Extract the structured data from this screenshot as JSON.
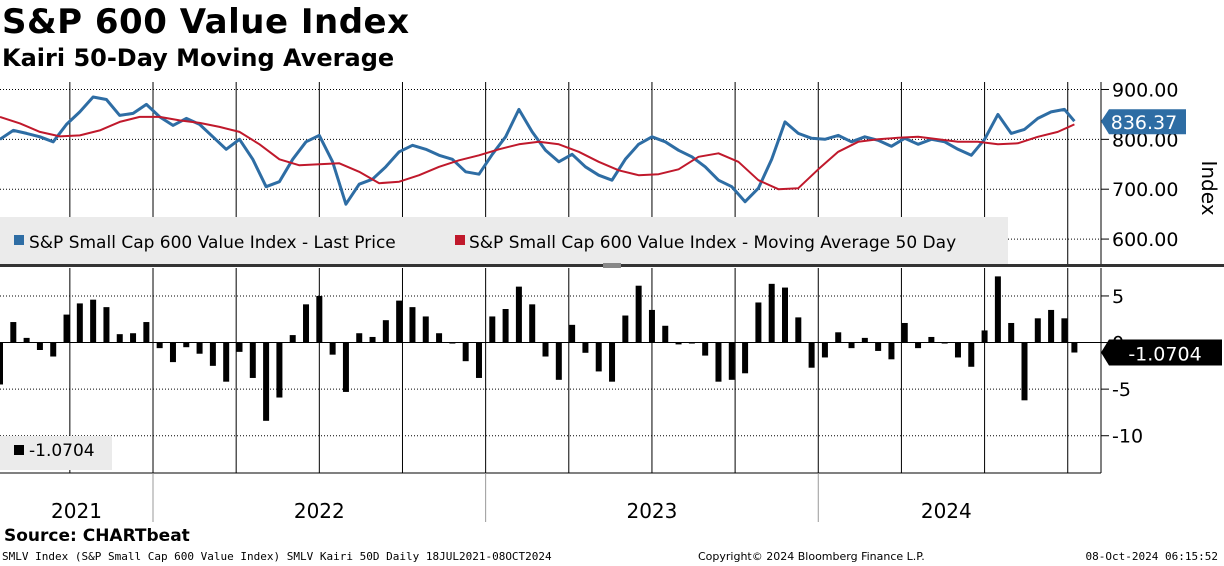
{
  "header": {
    "title": "S&P 600 Value Index",
    "subtitle": "Kairi 50-Day Moving Average"
  },
  "footer": {
    "source": "Source: CHARTbeat",
    "left": "SMLV Index (S&P Small Cap 600 Value Index) SMLV Kairi 50D  Daily 18JUL2021-08OCT2024",
    "copyright": "Copyright© 2024 Bloomberg Finance L.P.",
    "timestamp": "08-Oct-2024 06:15:52"
  },
  "colors": {
    "price": "#2e6da4",
    "ma": "#c0192c",
    "kairi": "#000000",
    "panel_bg": "#ebebeb"
  },
  "chart_data": [
    {
      "type": "line",
      "panel": "top",
      "ylabel": "Index",
      "ylim": [
        550,
        915
      ],
      "yticks": [
        900,
        800,
        700,
        600
      ],
      "ytick_labels": [
        "900.00",
        "800.00",
        "700.00",
        "600.00"
      ],
      "xlim": [
        2021.54,
        2024.85
      ],
      "grid": true,
      "legend_placement": "bottom-left",
      "last_value_label": "836.37",
      "series": [
        {
          "name": "S&P Small Cap 600 Value Index - Last Price",
          "color": "#2e6da4",
          "x": [
            2021.54,
            2021.58,
            2021.62,
            2021.66,
            2021.7,
            2021.74,
            2021.78,
            2021.82,
            2021.86,
            2021.9,
            2021.94,
            2021.98,
            2022.02,
            2022.06,
            2022.1,
            2022.14,
            2022.18,
            2022.22,
            2022.26,
            2022.3,
            2022.34,
            2022.38,
            2022.42,
            2022.46,
            2022.5,
            2022.54,
            2022.58,
            2022.62,
            2022.66,
            2022.7,
            2022.74,
            2022.78,
            2022.82,
            2022.86,
            2022.9,
            2022.94,
            2022.98,
            2023.02,
            2023.06,
            2023.1,
            2023.14,
            2023.18,
            2023.22,
            2023.26,
            2023.3,
            2023.34,
            2023.38,
            2023.42,
            2023.46,
            2023.5,
            2023.54,
            2023.58,
            2023.62,
            2023.66,
            2023.7,
            2023.74,
            2023.78,
            2023.82,
            2023.86,
            2023.9,
            2023.94,
            2023.98,
            2024.02,
            2024.06,
            2024.1,
            2024.14,
            2024.18,
            2024.22,
            2024.26,
            2024.3,
            2024.34,
            2024.38,
            2024.42,
            2024.46,
            2024.5,
            2024.54,
            2024.58,
            2024.62,
            2024.66,
            2024.7,
            2024.74,
            2024.77
          ],
          "values": [
            800,
            818,
            812,
            805,
            795,
            830,
            855,
            885,
            880,
            848,
            852,
            870,
            845,
            828,
            842,
            830,
            805,
            780,
            800,
            760,
            705,
            715,
            760,
            795,
            808,
            755,
            670,
            710,
            720,
            745,
            775,
            788,
            780,
            768,
            760,
            735,
            730,
            770,
            805,
            860,
            815,
            778,
            755,
            770,
            745,
            728,
            718,
            760,
            790,
            805,
            795,
            778,
            765,
            745,
            718,
            705,
            675,
            702,
            760,
            835,
            812,
            802,
            800,
            808,
            795,
            805,
            798,
            786,
            802,
            790,
            800,
            795,
            780,
            768,
            800,
            850,
            812,
            820,
            842,
            855,
            860,
            836.37
          ]
        },
        {
          "name": "S&P Small Cap 600 Value Index - Moving Average 50 Day",
          "color": "#c0192c",
          "x": [
            2021.54,
            2021.6,
            2021.66,
            2021.72,
            2021.78,
            2021.84,
            2021.9,
            2021.96,
            2022.02,
            2022.08,
            2022.14,
            2022.2,
            2022.26,
            2022.32,
            2022.38,
            2022.44,
            2022.5,
            2022.56,
            2022.62,
            2022.68,
            2022.74,
            2022.8,
            2022.86,
            2022.92,
            2022.98,
            2023.04,
            2023.1,
            2023.16,
            2023.22,
            2023.28,
            2023.34,
            2023.4,
            2023.46,
            2023.52,
            2023.58,
            2023.64,
            2023.7,
            2023.76,
            2023.82,
            2023.88,
            2023.94,
            2024.0,
            2024.06,
            2024.12,
            2024.18,
            2024.24,
            2024.3,
            2024.36,
            2024.42,
            2024.48,
            2024.54,
            2024.6,
            2024.66,
            2024.72,
            2024.77
          ],
          "values": [
            845,
            832,
            815,
            806,
            808,
            818,
            835,
            845,
            845,
            838,
            833,
            825,
            815,
            790,
            760,
            748,
            750,
            752,
            735,
            712,
            715,
            728,
            745,
            758,
            768,
            780,
            790,
            795,
            790,
            775,
            755,
            738,
            728,
            730,
            740,
            765,
            772,
            755,
            718,
            700,
            702,
            740,
            775,
            795,
            800,
            803,
            805,
            800,
            795,
            795,
            790,
            792,
            805,
            815,
            830
          ]
        }
      ]
    },
    {
      "type": "bar",
      "panel": "bottom",
      "title": "Kairi 50D",
      "ylim": [
        -14,
        8
      ],
      "yticks": [
        5,
        0,
        -5,
        -10
      ],
      "ytick_labels": [
        "5",
        "0",
        "-5",
        "-10"
      ],
      "xlim": [
        2021.54,
        2024.85
      ],
      "last_value_label": "-1.0704",
      "legend_label": "-1.0704",
      "series": [
        {
          "name": "Kairi 50D",
          "color": "#000000",
          "x": [
            2021.54,
            2021.58,
            2021.62,
            2021.66,
            2021.7,
            2021.74,
            2021.78,
            2021.82,
            2021.86,
            2021.9,
            2021.94,
            2021.98,
            2022.02,
            2022.06,
            2022.1,
            2022.14,
            2022.18,
            2022.22,
            2022.26,
            2022.3,
            2022.34,
            2022.38,
            2022.42,
            2022.46,
            2022.5,
            2022.54,
            2022.58,
            2022.62,
            2022.66,
            2022.7,
            2022.74,
            2022.78,
            2022.82,
            2022.86,
            2022.9,
            2022.94,
            2022.98,
            2023.02,
            2023.06,
            2023.1,
            2023.14,
            2023.18,
            2023.22,
            2023.26,
            2023.3,
            2023.34,
            2023.38,
            2023.42,
            2023.46,
            2023.5,
            2023.54,
            2023.58,
            2023.62,
            2023.66,
            2023.7,
            2023.74,
            2023.78,
            2023.82,
            2023.86,
            2023.9,
            2023.94,
            2023.98,
            2024.02,
            2024.06,
            2024.1,
            2024.14,
            2024.18,
            2024.22,
            2024.26,
            2024.3,
            2024.34,
            2024.38,
            2024.42,
            2024.46,
            2024.5,
            2024.54,
            2024.58,
            2024.62,
            2024.66,
            2024.7,
            2024.74,
            2024.77
          ],
          "values": [
            -4.5,
            2.2,
            0.5,
            -0.8,
            -1.5,
            3.0,
            4.2,
            4.6,
            3.8,
            0.9,
            1.0,
            2.2,
            -0.6,
            -2.1,
            -0.5,
            -1.2,
            -2.5,
            -4.2,
            -1.0,
            -3.8,
            -8.4,
            -5.9,
            0.8,
            4.1,
            5.0,
            -1.3,
            -5.3,
            1.0,
            0.6,
            2.4,
            4.5,
            3.8,
            2.8,
            1.0,
            -0.1,
            -2.0,
            -3.8,
            2.8,
            3.6,
            6.0,
            4.1,
            -1.5,
            -4.0,
            1.9,
            -1.1,
            -3.1,
            -4.2,
            2.9,
            6.1,
            3.5,
            1.8,
            -0.2,
            -0.1,
            -1.4,
            -4.2,
            -4.0,
            -3.3,
            4.3,
            6.3,
            5.9,
            2.7,
            -2.7,
            -1.6,
            1.1,
            -0.6,
            0.5,
            -0.9,
            -1.8,
            2.1,
            -0.6,
            0.6,
            -0.1,
            -1.6,
            -2.6,
            1.3,
            7.1,
            2.1,
            -6.2,
            2.6,
            3.5,
            2.6,
            -1.0704
          ]
        }
      ]
    }
  ],
  "xaxis": {
    "years": [
      "2021",
      "2022",
      "2023",
      "2024"
    ]
  }
}
